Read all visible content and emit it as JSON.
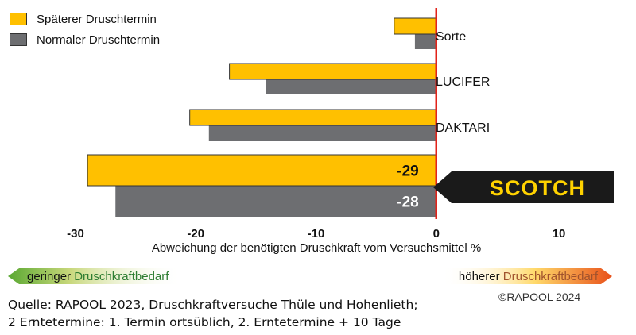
{
  "chart_data": {
    "type": "bar",
    "orientation": "horizontal",
    "categories": [
      "Sorte",
      "LUCIFER",
      "DAKTARI",
      "SCOTCH"
    ],
    "series": [
      {
        "name": "Späterer Druschtermin",
        "color": "#FFC000",
        "values": [
          -3.5,
          -17.2,
          -20.5,
          -29
        ]
      },
      {
        "name": "Normaler Druschtermin",
        "color": "#6D6E71",
        "values": [
          -2.7,
          -15.5,
          -19.7,
          -28
        ]
      }
    ],
    "data_labels": {
      "SCOTCH": [
        "-29",
        "-28"
      ]
    },
    "highlight_category": "SCOTCH",
    "xlabel": "Abweichung der benötigten Druschkraft vom Versuchsmittel %",
    "xlim": [
      -30,
      10
    ],
    "xticks": [
      "-30",
      "-20",
      "-10",
      "0",
      "10"
    ],
    "zero_line_color": "#E2231A",
    "legend_position": "top-left"
  },
  "scale_arrows": {
    "low_prefix": "geringer ",
    "low_emphasis": "Druschkraftbedarf",
    "high_prefix": "höherer ",
    "high_emphasis": "Druschkraftbedarf"
  },
  "footer": {
    "line1": "Quelle: RAPOOL 2023, Druschkraftversuche Thüle und Hohenlieth;",
    "line2": "2 Erntetermine: 1. Termin ortsüblich, 2. Erntetermine + 10 Tage",
    "copyright": "©RAPOOL 2024"
  }
}
